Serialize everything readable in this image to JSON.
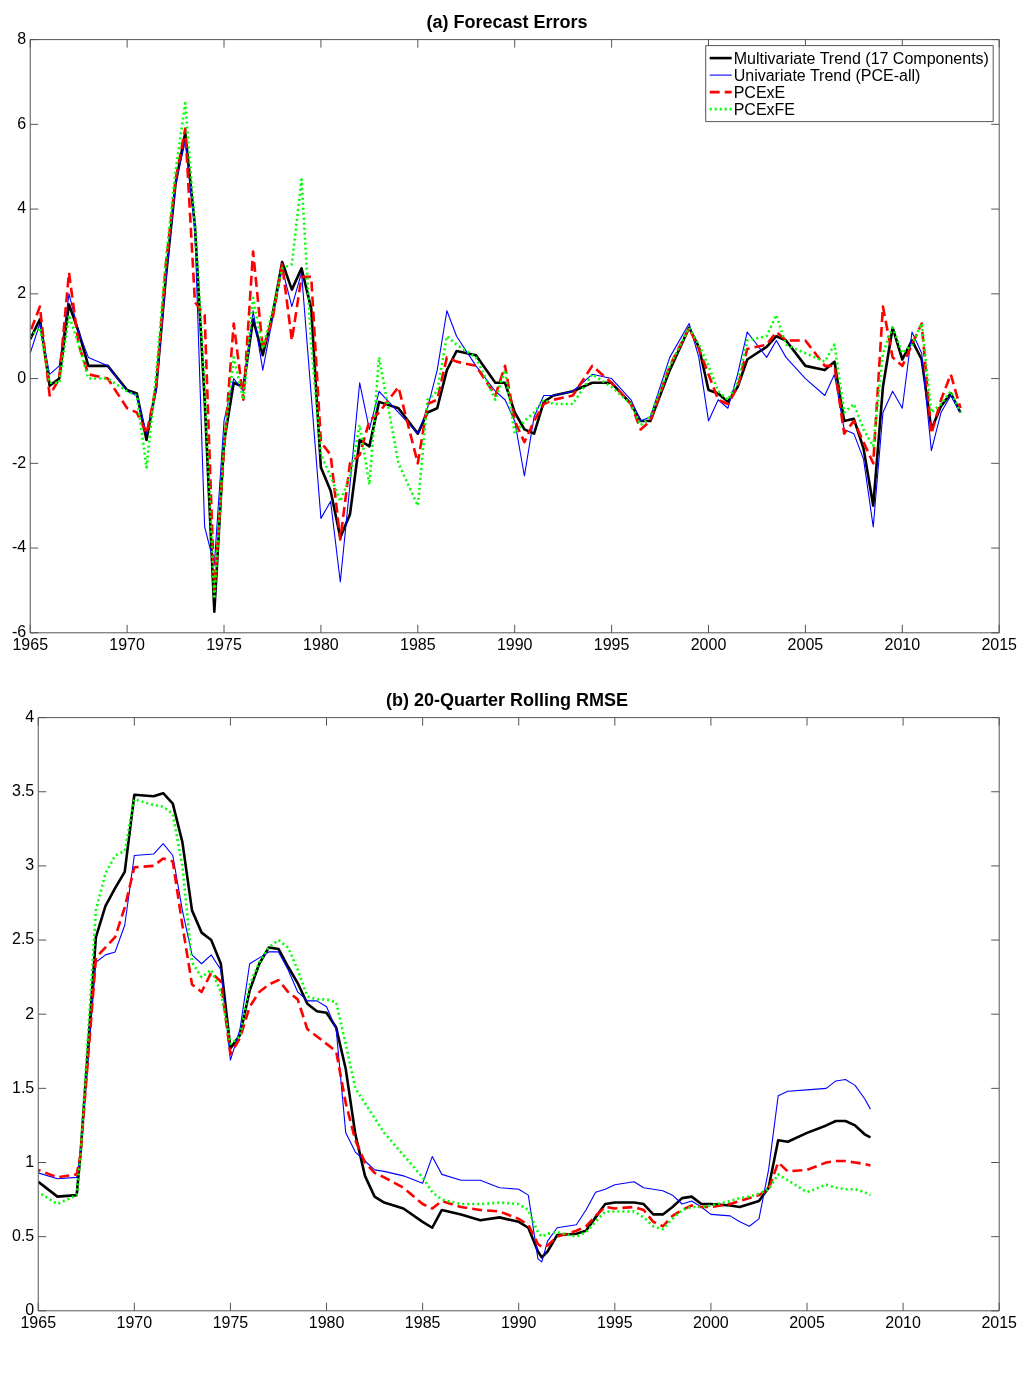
{
  "chart_data": [
    {
      "type": "line",
      "title": "(a) Forecast Errors",
      "legend": "top right",
      "grid": false,
      "xlim": [
        1965,
        2015
      ],
      "xticks": [
        1965,
        1970,
        1975,
        1980,
        1985,
        1990,
        1995,
        2000,
        2005,
        2010,
        2015
      ],
      "ylim": [
        -6,
        8
      ],
      "yticks": [
        -6,
        -4,
        -2,
        0,
        2,
        4,
        6,
        8
      ],
      "x": [
        1965,
        1965.5,
        1966,
        1966.5,
        1967,
        1967.5,
        1968,
        1969,
        1970,
        1970.5,
        1971,
        1971.5,
        1972,
        1972.5,
        1973,
        1973.5,
        1974,
        1974.5,
        1975,
        1975.5,
        1976,
        1976.5,
        1977,
        1977.5,
        1978,
        1978.5,
        1979,
        1979.5,
        1980,
        1980.5,
        1981,
        1981.5,
        1982,
        1982.5,
        1983,
        1984,
        1985,
        1985.5,
        1986,
        1986.5,
        1987,
        1988,
        1989,
        1989.5,
        1990,
        1990.5,
        1991,
        1991.5,
        1992,
        1993,
        1994,
        1995,
        1996,
        1996.5,
        1997,
        1998,
        1999,
        1999.5,
        2000,
        2000.5,
        2001,
        2001.5,
        2002,
        2003,
        2003.5,
        2004,
        2005,
        2006,
        2006.5,
        2007,
        2007.5,
        2008,
        2008.5,
        2009,
        2009.5,
        2010,
        2010.5,
        2011,
        2011.5,
        2012,
        2012.5,
        2013
      ],
      "series": [
        {
          "name": "Multivariate Trend (17 Components)",
          "color": "#000000",
          "line_style": "solid",
          "values": [
            0.93,
            1.4,
            -0.17,
            0,
            1.75,
            1.1,
            0.3,
            0.3,
            -0.27,
            -0.35,
            -1.45,
            -0.2,
            2.4,
            4.6,
            5.8,
            3.6,
            -0.5,
            -5.5,
            -1.5,
            -0.1,
            -0.2,
            1.4,
            0.55,
            1.5,
            2.75,
            2.1,
            2.6,
            1.65,
            -2.1,
            -2.65,
            -3.75,
            -3.2,
            -1.45,
            -1.6,
            -0.55,
            -0.7,
            -1.3,
            -0.8,
            -0.7,
            0.2,
            0.65,
            0.55,
            -0.1,
            -0.1,
            -0.8,
            -1.2,
            -1.3,
            -0.55,
            -0.4,
            -0.3,
            -0.1,
            -0.1,
            -0.6,
            -1.0,
            -1.0,
            0.2,
            1.2,
            0.75,
            -0.27,
            -0.35,
            -0.55,
            -0.2,
            0.45,
            0.75,
            1.0,
            0.9,
            0.3,
            0.2,
            0.4,
            -1.0,
            -0.95,
            -1.65,
            -3.0,
            -0.2,
            1.2,
            0.45,
            0.9,
            0.45,
            -1.2,
            -0.65,
            -0.35,
            -0.8
          ]
        },
        {
          "name": "Univariate Trend (PCE-all)",
          "color": "#0000ff",
          "line_style": "solid",
          "values": [
            0.6,
            1.3,
            0.1,
            0.3,
            2.0,
            1.1,
            0.5,
            0.3,
            -0.3,
            -0.4,
            -1.3,
            -0.3,
            2.3,
            4.6,
            5.6,
            3.5,
            -3.5,
            -4.4,
            -1.0,
            0.0,
            -0.3,
            1.6,
            0.2,
            1.4,
            2.6,
            1.7,
            2.5,
            -0.4,
            -3.3,
            -2.9,
            -4.8,
            -2.5,
            -0.1,
            -1.2,
            -0.3,
            -0.8,
            -1.3,
            -0.7,
            0.2,
            1.6,
            1.0,
            0.3,
            -0.3,
            -0.5,
            -1.0,
            -2.3,
            -0.9,
            -0.4,
            -0.4,
            -0.3,
            0.1,
            0.0,
            -0.5,
            -1.0,
            -0.9,
            0.5,
            1.3,
            0.5,
            -1.0,
            -0.5,
            -0.7,
            0.1,
            1.1,
            0.5,
            0.9,
            0.5,
            0.0,
            -0.4,
            0.1,
            -1.2,
            -1.3,
            -1.9,
            -3.5,
            -0.8,
            -0.3,
            -0.7,
            1.1,
            0.6,
            -1.7,
            -0.8,
            -0.4,
            -0.8
          ]
        },
        {
          "name": "PCExE",
          "color": "#ff0000",
          "line_style": "dashed",
          "values": [
            1.1,
            1.7,
            -0.4,
            0.0,
            2.5,
            0.8,
            0.1,
            0.0,
            -0.7,
            -0.8,
            -1.3,
            -0.2,
            2.7,
            4.7,
            5.9,
            1.8,
            1.5,
            -5.0,
            -1.7,
            1.3,
            -0.5,
            3.0,
            0.7,
            1.4,
            2.7,
            0.9,
            2.4,
            2.4,
            -1.5,
            -1.8,
            -3.8,
            -2.0,
            -1.8,
            -1.0,
            -0.8,
            -0.2,
            -2.0,
            -0.6,
            -0.5,
            0.5,
            0.4,
            0.3,
            -0.4,
            0.3,
            -1.0,
            -1.5,
            -1.0,
            -0.6,
            -0.5,
            -0.4,
            0.3,
            -0.1,
            -0.6,
            -1.2,
            -1.0,
            0.3,
            1.2,
            0.7,
            0.1,
            -0.5,
            -0.6,
            -0.2,
            0.7,
            0.8,
            1.1,
            0.9,
            0.9,
            0.3,
            0.3,
            -1.3,
            -1.0,
            -1.5,
            -2.0,
            1.7,
            0.5,
            0.3,
            0.8,
            1.3,
            -1.3,
            -0.5,
            0.1,
            -0.7
          ]
        },
        {
          "name": "PCExFE",
          "color": "#00ff00",
          "line_style": "dotted",
          "values": [
            1.0,
            1.2,
            -0.1,
            -0.1,
            1.5,
            0.8,
            0.0,
            0.0,
            -0.3,
            -0.4,
            -2.1,
            0.1,
            2.8,
            4.9,
            6.5,
            3.6,
            -0.2,
            -5.2,
            -1.5,
            0.5,
            -0.5,
            1.9,
            0.7,
            1.6,
            2.6,
            2.7,
            4.7,
            0.8,
            -1.8,
            -2.3,
            -2.9,
            -2.3,
            -1.1,
            -2.5,
            0.5,
            -2.0,
            -3.0,
            -0.5,
            -0.3,
            1.0,
            0.8,
            0.5,
            -0.5,
            0.2,
            -1.3,
            -1.0,
            -0.8,
            -0.5,
            -0.6,
            -0.6,
            0.1,
            -0.2,
            -0.6,
            -1.1,
            -0.9,
            0.3,
            1.2,
            0.8,
            0.3,
            -0.3,
            -0.5,
            -0.1,
            0.9,
            1.0,
            1.5,
            0.8,
            0.6,
            0.4,
            0.8,
            -0.8,
            -0.6,
            -1.2,
            -1.6,
            0.6,
            1.2,
            0.6,
            0.8,
            1.3,
            -0.8,
            -0.6,
            -0.3,
            -0.8
          ]
        }
      ]
    },
    {
      "type": "line",
      "title": "(b) 20-Quarter Rolling RMSE",
      "grid": false,
      "xlim": [
        1965,
        2015
      ],
      "xticks": [
        1965,
        1970,
        1975,
        1980,
        1985,
        1990,
        1995,
        2000,
        2005,
        2010,
        2015
      ],
      "ylim": [
        0,
        4
      ],
      "yticks": [
        0,
        0.5,
        1,
        1.5,
        2,
        2.5,
        3,
        3.5,
        4
      ],
      "x": [
        1965,
        1966,
        1967,
        1967.2,
        1968,
        1968.5,
        1969,
        1969.5,
        1970,
        1971,
        1971.5,
        1972,
        1972.5,
        1973,
        1973.5,
        1974,
        1974.5,
        1975,
        1975.5,
        1976,
        1976.5,
        1977,
        1977.5,
        1978,
        1978.5,
        1979,
        1979.5,
        1980,
        1980.5,
        1981,
        1981.5,
        1982,
        1982.5,
        1983,
        1984,
        1985,
        1985.5,
        1986,
        1987,
        1988,
        1989,
        1990,
        1990.5,
        1991,
        1991.2,
        1991.5,
        1992,
        1993,
        1993.5,
        1994,
        1994.5,
        1995,
        1996,
        1996.5,
        1997,
        1997.5,
        1998,
        1998.5,
        1999,
        1999.5,
        2000,
        2001,
        2001.5,
        2002,
        2002.5,
        2003,
        2003.5,
        2004,
        2005,
        2006,
        2006.5,
        2007,
        2007.5,
        2008,
        2008.3
      ],
      "series": [
        {
          "color": "#000000",
          "line_style": "solid",
          "values": [
            0.87,
            0.77,
            0.78,
            1.06,
            2.52,
            2.73,
            2.85,
            2.96,
            3.48,
            3.47,
            3.49,
            3.42,
            3.16,
            2.7,
            2.55,
            2.5,
            2.34,
            1.77,
            1.86,
            2.16,
            2.34,
            2.45,
            2.44,
            2.32,
            2.21,
            2.07,
            2.02,
            2.01,
            1.91,
            1.63,
            1.19,
            0.91,
            0.77,
            0.73,
            0.69,
            0.6,
            0.56,
            0.68,
            0.65,
            0.61,
            0.63,
            0.6,
            0.56,
            0.4,
            0.36,
            0.4,
            0.51,
            0.52,
            0.54,
            0.63,
            0.72,
            0.73,
            0.73,
            0.72,
            0.65,
            0.65,
            0.7,
            0.76,
            0.77,
            0.72,
            0.72,
            0.71,
            0.7,
            0.72,
            0.74,
            0.83,
            1.15,
            1.14,
            1.2,
            1.25,
            1.28,
            1.28,
            1.25,
            1.19,
            1.17
          ]
        },
        {
          "color": "#0000ff",
          "line_style": "solid",
          "values": [
            0.93,
            0.89,
            0.9,
            1.06,
            2.35,
            2.4,
            2.42,
            2.6,
            3.07,
            3.08,
            3.15,
            3.07,
            2.7,
            2.4,
            2.34,
            2.4,
            2.3,
            1.69,
            1.9,
            2.34,
            2.38,
            2.42,
            2.42,
            2.3,
            2.15,
            2.09,
            2.09,
            2.05,
            1.9,
            1.2,
            1.07,
            1.01,
            0.95,
            0.94,
            0.91,
            0.86,
            1.04,
            0.92,
            0.88,
            0.88,
            0.83,
            0.82,
            0.78,
            0.35,
            0.33,
            0.47,
            0.56,
            0.58,
            0.68,
            0.8,
            0.82,
            0.85,
            0.87,
            0.83,
            0.82,
            0.81,
            0.78,
            0.72,
            0.74,
            0.7,
            0.65,
            0.64,
            0.6,
            0.57,
            0.62,
            0.95,
            1.45,
            1.48,
            1.49,
            1.5,
            1.55,
            1.56,
            1.52,
            1.43,
            1.36
          ]
        },
        {
          "color": "#ff0000",
          "line_style": "dashed",
          "values": [
            0.95,
            0.9,
            0.92,
            1.05,
            2.38,
            2.45,
            2.52,
            2.72,
            2.99,
            3.0,
            3.05,
            3.03,
            2.6,
            2.2,
            2.15,
            2.28,
            2.22,
            1.73,
            1.84,
            2.05,
            2.15,
            2.2,
            2.23,
            2.15,
            2.1,
            1.9,
            1.85,
            1.8,
            1.75,
            1.4,
            1.15,
            1.0,
            0.93,
            0.9,
            0.83,
            0.72,
            0.69,
            0.74,
            0.7,
            0.68,
            0.67,
            0.62,
            0.58,
            0.45,
            0.43,
            0.44,
            0.5,
            0.54,
            0.57,
            0.64,
            0.7,
            0.69,
            0.7,
            0.68,
            0.6,
            0.57,
            0.64,
            0.68,
            0.71,
            0.7,
            0.7,
            0.72,
            0.74,
            0.76,
            0.78,
            0.82,
            1.0,
            0.94,
            0.95,
            1.0,
            1.01,
            1.01,
            1.0,
            0.99,
            0.98
          ]
        },
        {
          "color": "#00ff00",
          "line_style": "dotted",
          "values": [
            0.8,
            0.72,
            0.78,
            1.05,
            2.7,
            2.95,
            3.07,
            3.1,
            3.45,
            3.41,
            3.4,
            3.35,
            3.0,
            2.35,
            2.25,
            2.3,
            2.15,
            1.8,
            1.85,
            2.2,
            2.35,
            2.45,
            2.5,
            2.45,
            2.3,
            2.12,
            2.1,
            2.1,
            2.08,
            1.8,
            1.5,
            1.4,
            1.3,
            1.2,
            1.05,
            0.9,
            0.8,
            0.75,
            0.72,
            0.72,
            0.73,
            0.72,
            0.68,
            0.53,
            0.5,
            0.52,
            0.53,
            0.5,
            0.53,
            0.6,
            0.67,
            0.67,
            0.67,
            0.63,
            0.57,
            0.55,
            0.62,
            0.68,
            0.7,
            0.7,
            0.71,
            0.74,
            0.76,
            0.77,
            0.79,
            0.82,
            0.92,
            0.88,
            0.8,
            0.85,
            0.83,
            0.82,
            0.82,
            0.8,
            0.78
          ]
        }
      ]
    }
  ]
}
